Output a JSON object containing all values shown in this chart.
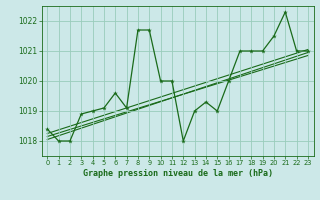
{
  "title": "Graphe pression niveau de la mer (hPa)",
  "bg_color": "#cce8e8",
  "grid_color": "#99ccbb",
  "line_color": "#1a6b1a",
  "xlim": [
    -0.5,
    23.5
  ],
  "ylim": [
    1017.5,
    1022.5
  ],
  "yticks": [
    1018,
    1019,
    1020,
    1021,
    1022
  ],
  "xticks": [
    0,
    1,
    2,
    3,
    4,
    5,
    6,
    7,
    8,
    9,
    10,
    11,
    12,
    13,
    14,
    15,
    16,
    17,
    18,
    19,
    20,
    21,
    22,
    23
  ],
  "series": [
    [
      0,
      1018.4
    ],
    [
      1,
      1018.0
    ],
    [
      2,
      1018.0
    ],
    [
      3,
      1018.9
    ],
    [
      4,
      1019.0
    ],
    [
      5,
      1019.1
    ],
    [
      6,
      1019.6
    ],
    [
      7,
      1019.1
    ],
    [
      8,
      1021.7
    ],
    [
      9,
      1021.7
    ],
    [
      10,
      1020.0
    ],
    [
      11,
      1020.0
    ],
    [
      12,
      1018.0
    ],
    [
      13,
      1019.0
    ],
    [
      14,
      1019.3
    ],
    [
      15,
      1019.0
    ],
    [
      16,
      1020.0
    ],
    [
      17,
      1021.0
    ],
    [
      18,
      1021.0
    ],
    [
      19,
      1021.0
    ],
    [
      20,
      1021.5
    ],
    [
      21,
      1022.3
    ],
    [
      22,
      1021.0
    ],
    [
      23,
      1021.0
    ]
  ],
  "trend_lines": [
    [
      [
        0,
        1018.15
      ],
      [
        23,
        1020.85
      ]
    ],
    [
      [
        0,
        1018.05
      ],
      [
        23,
        1020.95
      ]
    ],
    [
      [
        0,
        1018.25
      ],
      [
        23,
        1021.05
      ]
    ]
  ],
  "title_fontsize": 6.0,
  "tick_fontsize": 5.5
}
